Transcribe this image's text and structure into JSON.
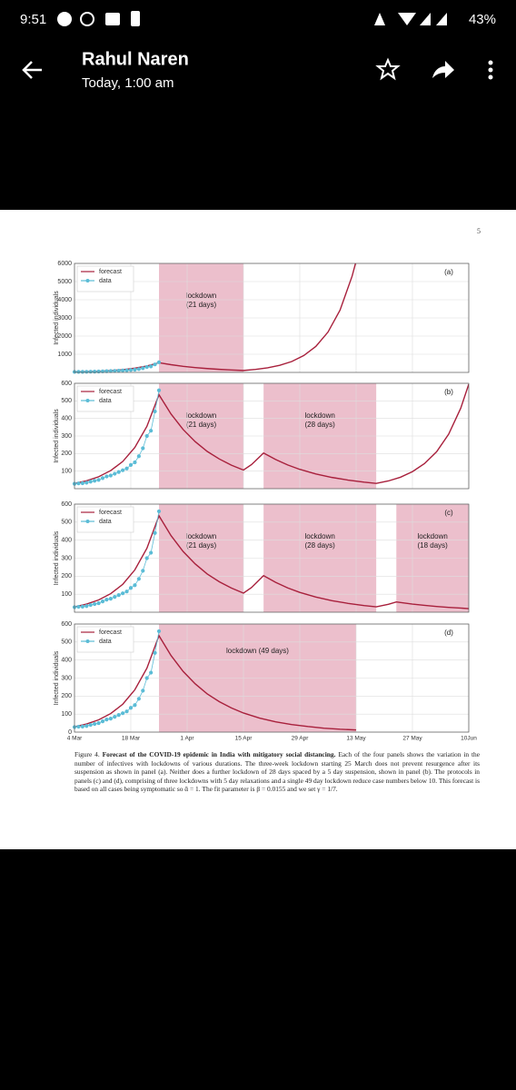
{
  "status_bar": {
    "time": "9:51",
    "battery": "43%"
  },
  "header": {
    "sender": "Rahul Naren",
    "time": "Today, 1:00 am"
  },
  "document": {
    "page_number": "5",
    "caption_label": "Figure 4.",
    "caption_title": "Forecast of the COVID-19 epidemic in India with mitigatory social distancing.",
    "caption_text": "Each of the four panels shows the variation in the number of infectives with lockdowns of various durations. The three-week lockdown starting 25 March does not prevent resurgence after its suspension as shown in panel (a). Neither does a further lockdown of 28 days spaced by a 5 day suspension, shown in panel (b). The protocols in panels (c) and (d), comprising of three lockdowns with 5 day relaxations and a single 49 day lockdown reduce case numbers below 10. This forecast is based on all cases being symptomatic so ᾱ = 1. The fit parameter is β = 0.0155 and we set γ = 1/7."
  },
  "chart_data": [
    {
      "type": "line",
      "panel": "(a)",
      "ylabel": "Infected individuals",
      "xlim": [
        0,
        98
      ],
      "ylim": [
        0,
        6000
      ],
      "yticks": [
        1000,
        2000,
        3000,
        4000,
        5000,
        6000
      ],
      "grid": true,
      "legend": "upper left",
      "lockdowns": [
        {
          "start": 21,
          "end": 42,
          "label": "lockdown",
          "duration": "(21 days)"
        }
      ],
      "series": [
        {
          "name": "forecast",
          "color": "#a8203c",
          "x": [
            0,
            3,
            6,
            9,
            12,
            15,
            18,
            21,
            24,
            27,
            30,
            33,
            36,
            39,
            42,
            45,
            48,
            51,
            54,
            57,
            60,
            63,
            66,
            69,
            70
          ],
          "values": [
            30,
            45,
            68,
            103,
            155,
            235,
            355,
            535,
            425,
            337,
            268,
            212,
            169,
            134,
            106,
            163,
            252,
            389,
            600,
            928,
            1434,
            2217,
            3427,
            5296,
            6121
          ]
        },
        {
          "name": "data",
          "color": "#5bbcd6",
          "x": [
            0,
            1,
            2,
            3,
            4,
            5,
            6,
            7,
            8,
            9,
            10,
            11,
            12,
            13,
            14,
            15,
            16,
            17,
            18,
            19,
            20,
            21
          ],
          "values": [
            28,
            30,
            31,
            34,
            40,
            45,
            50,
            60,
            70,
            75,
            85,
            95,
            105,
            115,
            135,
            150,
            185,
            230,
            300,
            330,
            440,
            560
          ]
        }
      ]
    },
    {
      "type": "line",
      "panel": "(b)",
      "ylabel": "Infected individuals",
      "xlim": [
        0,
        98
      ],
      "ylim": [
        0,
        600
      ],
      "yticks": [
        100,
        200,
        300,
        400,
        500,
        600
      ],
      "grid": true,
      "legend": "upper left",
      "lockdowns": [
        {
          "start": 21,
          "end": 42,
          "label": "lockdown",
          "duration": "(21 days)"
        },
        {
          "start": 47,
          "end": 75,
          "label": "lockdown",
          "duration": "(28 days)"
        }
      ],
      "series": [
        {
          "name": "forecast",
          "color": "#a8203c",
          "x": [
            0,
            3,
            6,
            9,
            12,
            15,
            18,
            21,
            24,
            27,
            30,
            33,
            36,
            39,
            42,
            44,
            47,
            50,
            53,
            56,
            60,
            64,
            68,
            72,
            75,
            78,
            81,
            84,
            87,
            90,
            93,
            96,
            98
          ],
          "values": [
            30,
            45,
            68,
            103,
            155,
            235,
            355,
            535,
            425,
            337,
            268,
            212,
            169,
            134,
            106,
            137,
            203,
            166,
            135,
            110,
            84,
            64,
            49,
            37,
            30,
            44,
            65,
            97,
            143,
            210,
            310,
            458,
            595
          ]
        },
        {
          "name": "data",
          "color": "#5bbcd6",
          "x": [
            0,
            1,
            2,
            3,
            4,
            5,
            6,
            7,
            8,
            9,
            10,
            11,
            12,
            13,
            14,
            15,
            16,
            17,
            18,
            19,
            20,
            21
          ],
          "values": [
            28,
            30,
            31,
            34,
            40,
            45,
            50,
            60,
            70,
            75,
            85,
            95,
            105,
            115,
            135,
            150,
            185,
            230,
            300,
            330,
            440,
            560
          ]
        }
      ]
    },
    {
      "type": "line",
      "panel": "(c)",
      "ylabel": "Infected individuals",
      "xlim": [
        0,
        98
      ],
      "ylim": [
        0,
        600
      ],
      "yticks": [
        100,
        200,
        300,
        400,
        500,
        600
      ],
      "grid": true,
      "legend": "upper left",
      "lockdowns": [
        {
          "start": 21,
          "end": 42,
          "label": "lockdown",
          "duration": "(21 days)"
        },
        {
          "start": 47,
          "end": 75,
          "label": "lockdown",
          "duration": "(28 days)"
        },
        {
          "start": 80,
          "end": 98,
          "label": "lockdown",
          "duration": "(18 days)"
        }
      ],
      "series": [
        {
          "name": "forecast",
          "color": "#a8203c",
          "x": [
            0,
            3,
            6,
            9,
            12,
            15,
            18,
            21,
            24,
            27,
            30,
            33,
            36,
            39,
            42,
            44,
            47,
            50,
            53,
            56,
            60,
            64,
            68,
            72,
            75,
            78,
            80,
            84,
            87,
            90,
            93,
            96,
            98
          ],
          "values": [
            30,
            45,
            68,
            103,
            155,
            235,
            355,
            535,
            425,
            337,
            268,
            212,
            169,
            134,
            106,
            137,
            203,
            166,
            135,
            110,
            84,
            64,
            49,
            37,
            30,
            44,
            57,
            45,
            38,
            32,
            27,
            23,
            20
          ]
        },
        {
          "name": "data",
          "color": "#5bbcd6",
          "x": [
            0,
            1,
            2,
            3,
            4,
            5,
            6,
            7,
            8,
            9,
            10,
            11,
            12,
            13,
            14,
            15,
            16,
            17,
            18,
            19,
            20,
            21
          ],
          "values": [
            28,
            30,
            31,
            34,
            40,
            45,
            50,
            60,
            70,
            75,
            85,
            95,
            105,
            115,
            135,
            150,
            185,
            230,
            300,
            330,
            440,
            560
          ]
        }
      ]
    },
    {
      "type": "line",
      "panel": "(d)",
      "ylabel": "Infected individuals",
      "xlim": [
        0,
        98
      ],
      "ylim": [
        0,
        600
      ],
      "yticks": [
        0,
        100,
        200,
        300,
        400,
        500,
        600
      ],
      "grid": true,
      "legend": "upper left",
      "xticks": [
        {
          "value": 0,
          "label": "4 Mar"
        },
        {
          "value": 14,
          "label": "18 Mar"
        },
        {
          "value": 28,
          "label": "1 Apr"
        },
        {
          "value": 42,
          "label": "15 Apr"
        },
        {
          "value": 56,
          "label": "29 Apr"
        },
        {
          "value": 70,
          "label": "13 May"
        },
        {
          "value": 84,
          "label": "27 May"
        },
        {
          "value": 98,
          "label": "10Jun"
        }
      ],
      "lockdowns": [
        {
          "start": 21,
          "end": 70,
          "label": "lockdown (49 days)"
        }
      ],
      "series": [
        {
          "name": "forecast",
          "color": "#a8203c",
          "x": [
            0,
            3,
            6,
            9,
            12,
            15,
            18,
            21,
            24,
            27,
            30,
            33,
            36,
            39,
            42,
            46,
            50,
            54,
            58,
            62,
            66,
            70
          ],
          "values": [
            30,
            45,
            68,
            103,
            155,
            235,
            355,
            535,
            425,
            337,
            268,
            212,
            169,
            134,
            106,
            78,
            57,
            42,
            31,
            22,
            16,
            12
          ]
        },
        {
          "name": "data",
          "color": "#5bbcd6",
          "x": [
            0,
            1,
            2,
            3,
            4,
            5,
            6,
            7,
            8,
            9,
            10,
            11,
            12,
            13,
            14,
            15,
            16,
            17,
            18,
            19,
            20,
            21
          ],
          "values": [
            28,
            30,
            31,
            34,
            40,
            45,
            50,
            60,
            70,
            75,
            85,
            95,
            105,
            115,
            135,
            150,
            185,
            230,
            300,
            330,
            440,
            560
          ]
        }
      ]
    }
  ]
}
